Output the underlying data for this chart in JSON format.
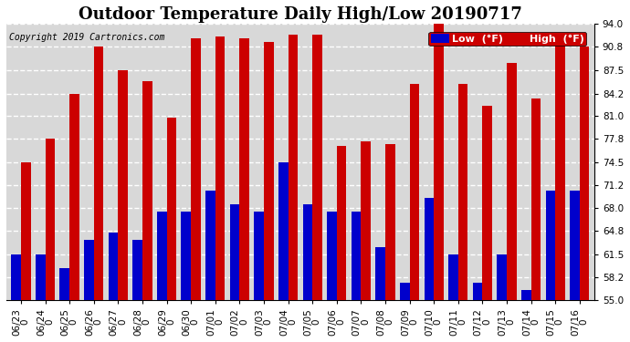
{
  "title": "Outdoor Temperature Daily High/Low 20190717",
  "copyright": "Copyright 2019 Cartronics.com",
  "legend_low_label": "Low  (°F)",
  "legend_high_label": "High  (°F)",
  "legend_low_color": "#0000cc",
  "legend_high_color": "#cc0000",
  "background_color": "#ffffff",
  "plot_background_color": "#d8d8d8",
  "ylim": [
    55.0,
    94.0
  ],
  "yticks": [
    55.0,
    58.2,
    61.5,
    64.8,
    68.0,
    71.2,
    74.5,
    77.8,
    81.0,
    84.2,
    87.5,
    90.8,
    94.0
  ],
  "dates": [
    "06/23\n0",
    "06/24\n0",
    "06/25\n0",
    "06/26\n0",
    "06/27\n0",
    "06/28\n0",
    "06/29\n0",
    "06/30\n0",
    "07/01\n0",
    "07/02\n0",
    "07/03\n0",
    "07/04\n0",
    "07/05\n0",
    "07/06\n0",
    "07/07\n0",
    "07/08\n0",
    "07/09\n0",
    "07/10\n0",
    "07/11\n0",
    "07/12\n0",
    "07/13\n0",
    "07/14\n0",
    "07/15\n0",
    "07/16\n0"
  ],
  "highs": [
    74.5,
    77.8,
    84.2,
    90.8,
    87.5,
    86.0,
    80.8,
    92.0,
    92.2,
    92.0,
    91.5,
    92.5,
    92.5,
    76.8,
    77.5,
    77.0,
    85.5,
    94.0,
    85.5,
    82.5,
    88.5,
    83.5,
    91.0,
    90.8
  ],
  "lows": [
    61.5,
    61.5,
    59.5,
    63.5,
    64.5,
    63.5,
    67.5,
    67.5,
    70.5,
    68.5,
    67.5,
    74.5,
    68.5,
    67.5,
    67.5,
    62.5,
    57.5,
    69.5,
    61.5,
    57.5,
    61.5,
    56.5,
    70.5,
    70.5
  ],
  "bar_width": 0.4,
  "grid_color": "#ffffff",
  "grid_style": "--",
  "title_fontsize": 13,
  "tick_fontsize": 7.5,
  "legend_fontsize": 8
}
